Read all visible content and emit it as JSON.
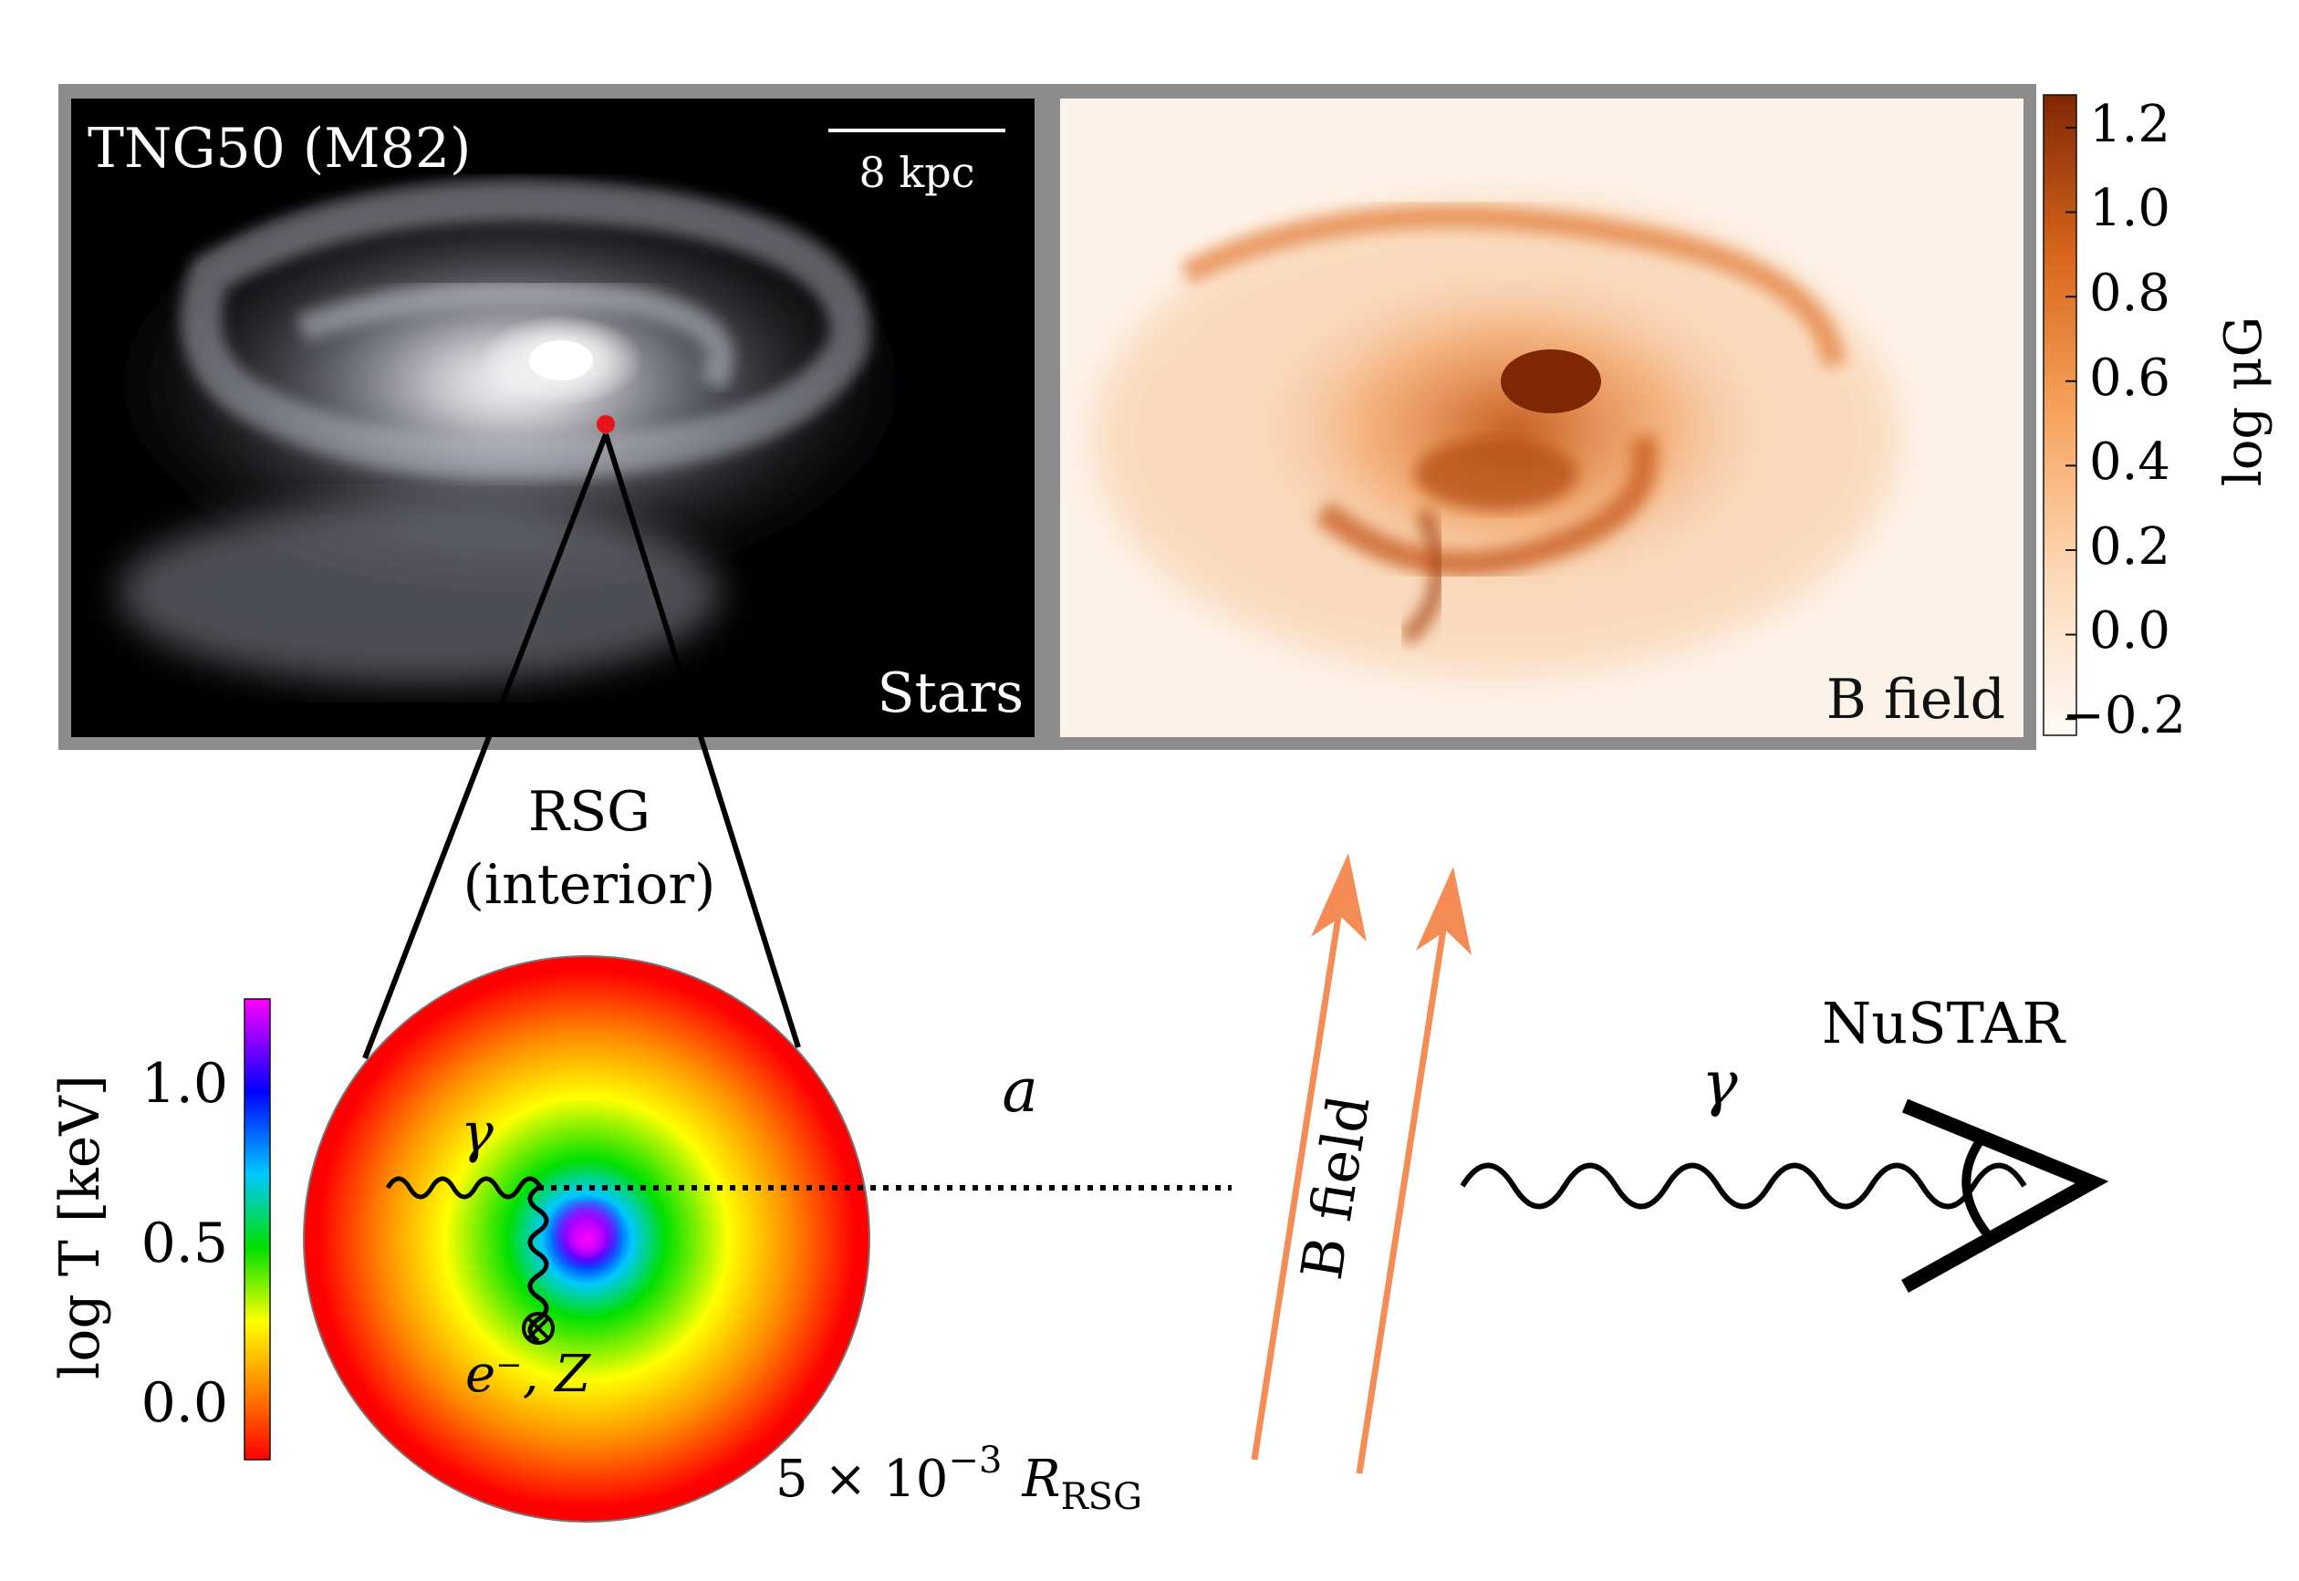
{
  "galaxy_panel": {
    "title": "TNG50 (M82)",
    "scale_bar": "8 kpc",
    "stars_label": "Stars",
    "bfield_label": "B field"
  },
  "bfield_colorbar": {
    "label": "log μG",
    "ticks": [
      "1.2",
      "1.0",
      "0.8",
      "0.6",
      "0.4",
      "0.2",
      "0.0",
      "−0.2"
    ]
  },
  "temperature_colorbar": {
    "label": "log T [keV]",
    "ticks": [
      "1.0",
      "0.5",
      "0.0"
    ]
  },
  "rsg": {
    "label_line1": "RSG",
    "label_line2": "(interior)",
    "gamma": "γ",
    "scatter_target": "e⁻, Z",
    "scale_prefix": "5 × 10",
    "scale_exp": "−3",
    "scale_R": "R",
    "scale_sub": "RSG"
  },
  "propagation": {
    "axion": "a",
    "bfield_label": "B field",
    "gamma": "γ",
    "detector": "NuSTAR"
  },
  "colors": {
    "panel_frame": "#8c8c8c",
    "bfield_max": "#8b2a05",
    "bfield_mid": "#f08a3c",
    "bfield_min": "#fdf3ea",
    "arrow": "#f58b55",
    "galaxy_dot": "#e8141b"
  }
}
